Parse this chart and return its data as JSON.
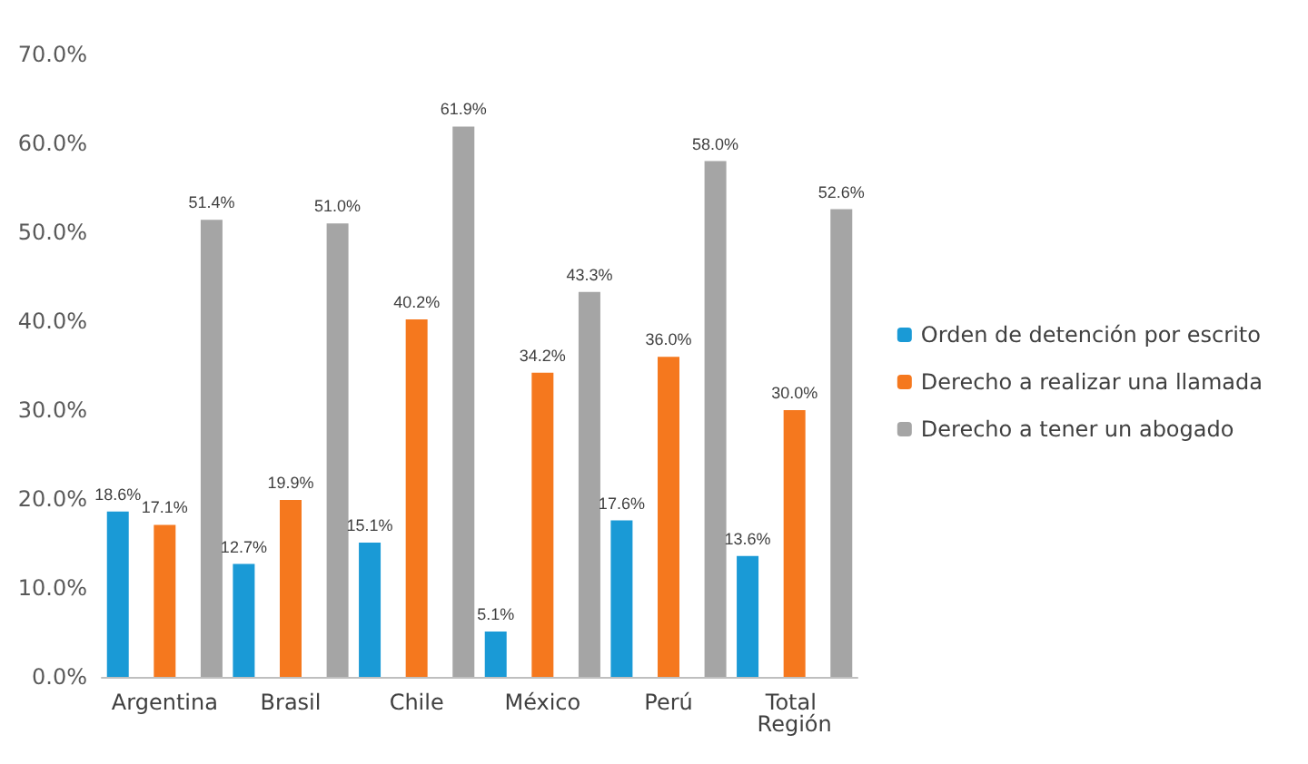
{
  "chart_data": {
    "type": "bar",
    "categories": [
      "Argentina",
      "Brasil",
      "Chile",
      "México",
      "Perú",
      "Total Región"
    ],
    "series": [
      {
        "name": "Orden de detención por escrito",
        "color": "#1a9ad6",
        "values": [
          18.6,
          12.7,
          15.1,
          5.1,
          17.6,
          13.6
        ],
        "value_labels": [
          "18.6%",
          "12.7%",
          "15.1%",
          "5.1%",
          "17.6%",
          "13.6%"
        ]
      },
      {
        "name": "Derecho a realizar una llamada",
        "color": "#f5781e",
        "values": [
          17.1,
          19.9,
          40.2,
          34.2,
          36.0,
          30.0
        ],
        "value_labels": [
          "17.1%",
          "19.9%",
          "40.2%",
          "34.2%",
          "36.0%",
          "30.0%"
        ]
      },
      {
        "name": "Derecho a tener un abogado",
        "color": "#a5a5a5",
        "values": [
          51.4,
          51.0,
          61.9,
          43.3,
          58.0,
          52.6
        ],
        "value_labels": [
          "51.4%",
          "51.0%",
          "61.9%",
          "43.3%",
          "58.0%",
          "52.6%"
        ]
      }
    ],
    "ylim": [
      0,
      70
    ],
    "yticks": [
      {
        "value": 0,
        "label": "0.0%"
      },
      {
        "value": 10,
        "label": "10.0%"
      },
      {
        "value": 20,
        "label": "20.0%"
      },
      {
        "value": 30,
        "label": "30.0%"
      },
      {
        "value": 40,
        "label": "40.0%"
      },
      {
        "value": 50,
        "label": "50.0%"
      },
      {
        "value": 60,
        "label": "60.0%"
      },
      {
        "value": 70,
        "label": "70.0%"
      }
    ],
    "grid": false,
    "legend": "right"
  }
}
